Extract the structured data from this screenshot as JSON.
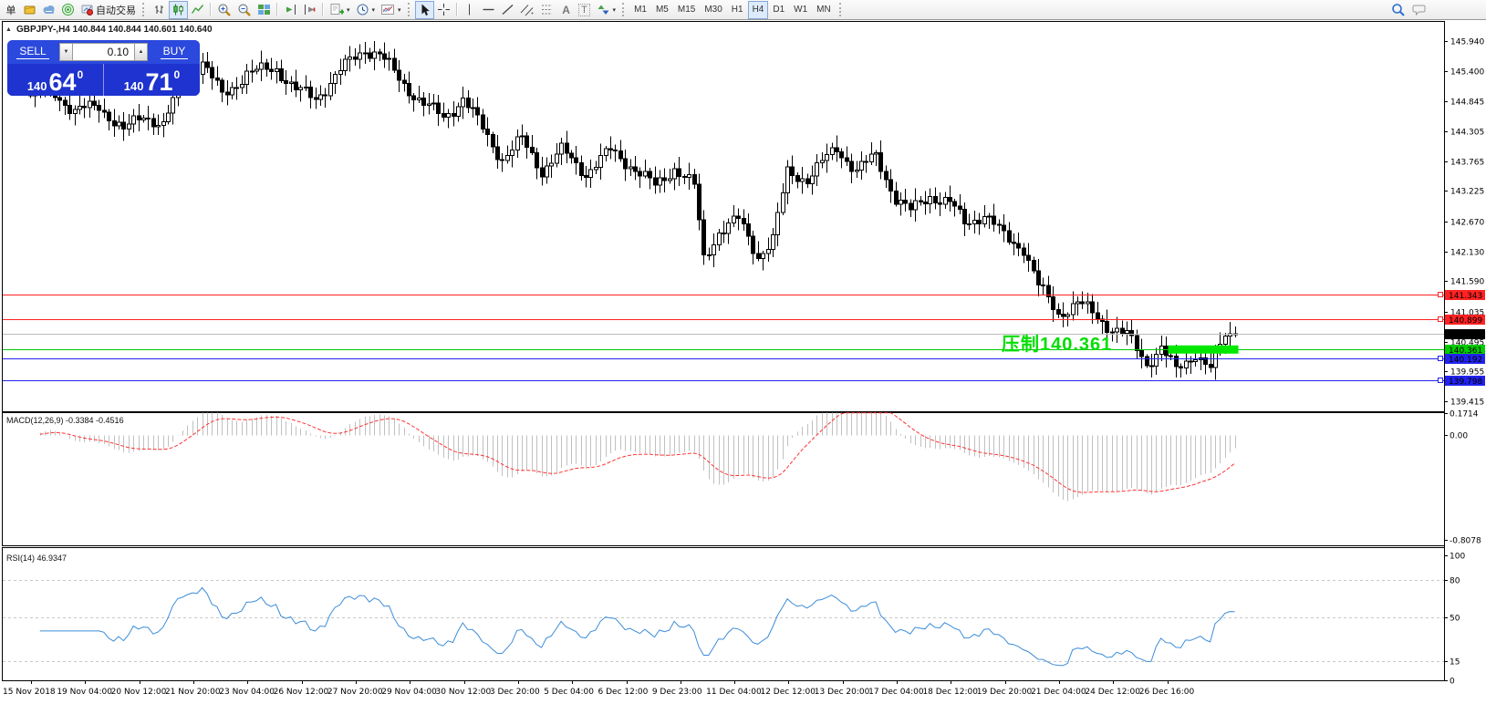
{
  "toolbar": {
    "new_order_label": "单",
    "autotrading_label": "自动交易",
    "text_tool_label": "A",
    "label_tool_label": "T",
    "timeframes": [
      "M1",
      "M5",
      "M15",
      "M30",
      "H1",
      "H4",
      "D1",
      "W1",
      "MN"
    ],
    "active_timeframe": "H4",
    "icons": [
      "notepad-icon",
      "cloud-chart-icon",
      "radar-icon",
      "autotrading-icon",
      "bar-chart-icon",
      "candlestick-icon",
      "line-chart-icon",
      "zoom-in-icon",
      "zoom-out-icon",
      "tile-windows-icon",
      "auto-scroll-icon",
      "chart-shift-icon",
      "add-indicator-icon",
      "periods-clock-icon",
      "template-icon",
      "cursor-icon",
      "crosshair-icon",
      "vertical-line-icon",
      "horizontal-line-icon",
      "trendline-icon",
      "channel-icon",
      "fibonacci-icon",
      "shapes-icon",
      "search-icon",
      "chat-icon"
    ]
  },
  "chart": {
    "title": "GBPJPY-,H4 140.844 140.844 140.601 140.640",
    "symbol": "GBPJPY-",
    "timeframe": "H4"
  },
  "trade_panel": {
    "sell_label": "SELL",
    "buy_label": "BUY",
    "lot_size": "0.10",
    "sell_price_main": "140",
    "sell_price_big": "64",
    "sell_price_sup": "0",
    "buy_price_main": "140",
    "buy_price_big": "71",
    "buy_price_sup": "0"
  },
  "annotation": {
    "text": "压制140.361",
    "color": "#00DE00"
  },
  "macd_label": "MACD(12,26,9) -0.3384 -0.4516",
  "rsi_label": "RSI(14) 46.9347",
  "chart_data": {
    "type": "candlestick",
    "symbol": "GBPJPY-",
    "timeframe": "H4",
    "price_axis_ticks": [
      "145.940",
      "145.400",
      "144.845",
      "144.305",
      "143.765",
      "143.225",
      "142.670",
      "142.130",
      "141.590",
      "141.035",
      "140.495",
      "139.955",
      "139.415"
    ],
    "time_axis_labels": [
      "15 Nov 2018",
      "19 Nov 04:00",
      "20 Nov 12:00",
      "21 Nov 20:00",
      "23 Nov 04:00",
      "26 Nov 12:00",
      "27 Nov 20:00",
      "29 Nov 04:00",
      "30 Nov 12:00",
      "3 Dec 20:00",
      "5 Dec 04:00",
      "6 Dec 12:00",
      "9 Dec 23:00",
      "11 Dec 04:00",
      "12 Dec 12:00",
      "13 Dec 20:00",
      "17 Dec 04:00",
      "18 Dec 12:00",
      "19 Dec 20:00",
      "21 Dec 04:00",
      "24 Dec 12:00",
      "26 Dec 16:00"
    ],
    "h_lines": [
      {
        "price": 141.343,
        "label": "141.343",
        "color": "#FF2222",
        "marker": true
      },
      {
        "price": 140.899,
        "label": "140.899",
        "color": "#FF2222",
        "marker": true
      },
      {
        "price": 140.361,
        "label": "140.361",
        "color": "#00CC00",
        "marker": false
      },
      {
        "price": 140.192,
        "label": "140.192",
        "color": "#2222EE",
        "marker": true
      },
      {
        "price": 139.798,
        "label": "139.798",
        "color": "#2222EE",
        "marker": true
      }
    ],
    "current_price": {
      "value": 140.64,
      "label": "140.640",
      "line_color": "#BBBBBB",
      "tag_color": "#000000"
    },
    "highlight_box": {
      "from_index": 232,
      "to_index": 245,
      "price": 140.361,
      "color": "#00E800"
    },
    "candles": {
      "count": 246,
      "last_close": 140.64,
      "close_pivots": [
        [
          0,
          144.95
        ],
        [
          4,
          145.1
        ],
        [
          9,
          144.65
        ],
        [
          14,
          144.78
        ],
        [
          19,
          144.3
        ],
        [
          23,
          144.62
        ],
        [
          27,
          144.4
        ],
        [
          31,
          145.25
        ],
        [
          35,
          145.55
        ],
        [
          39,
          144.95
        ],
        [
          44,
          145.35
        ],
        [
          50,
          145.45
        ],
        [
          54,
          145.05
        ],
        [
          58,
          144.9
        ],
        [
          63,
          145.4
        ],
        [
          68,
          145.8
        ],
        [
          71,
          145.7
        ],
        [
          75,
          145.25
        ],
        [
          80,
          144.8
        ],
        [
          84,
          144.55
        ],
        [
          88,
          144.9
        ],
        [
          92,
          144.35
        ],
        [
          96,
          143.8
        ],
        [
          100,
          144.15
        ],
        [
          104,
          143.6
        ],
        [
          108,
          143.95
        ],
        [
          113,
          143.55
        ],
        [
          118,
          143.95
        ],
        [
          122,
          143.7
        ],
        [
          127,
          143.3
        ],
        [
          131,
          143.65
        ],
        [
          135,
          143.3
        ],
        [
          137,
          142.0
        ],
        [
          140,
          142.5
        ],
        [
          144,
          142.7
        ],
        [
          148,
          142.05
        ],
        [
          151,
          142.35
        ],
        [
          154,
          143.55
        ],
        [
          158,
          143.45
        ],
        [
          164,
          144.0
        ],
        [
          168,
          143.6
        ],
        [
          172,
          143.85
        ],
        [
          176,
          143.1
        ],
        [
          179,
          142.85
        ],
        [
          183,
          143.15
        ],
        [
          187,
          143.0
        ],
        [
          190,
          142.65
        ],
        [
          194,
          142.8
        ],
        [
          198,
          142.4
        ],
        [
          202,
          142.2
        ],
        [
          205,
          141.5
        ],
        [
          209,
          141.0
        ],
        [
          213,
          141.2
        ],
        [
          219,
          140.8
        ],
        [
          223,
          140.6
        ],
        [
          227,
          140.1
        ],
        [
          230,
          140.4
        ],
        [
          233,
          139.95
        ],
        [
          237,
          140.3
        ],
        [
          240,
          140.0
        ],
        [
          243,
          140.6
        ],
        [
          245,
          140.64
        ]
      ]
    },
    "macd": {
      "fast": 12,
      "slow": 26,
      "signal": 9,
      "value": -0.3384,
      "signal_value": -0.4516,
      "axis_ticks": [
        "0.1714",
        "0.00",
        "-0.8078"
      ],
      "histogram_color": "#C0C0C0",
      "signal_color": "#FF3333"
    },
    "rsi": {
      "period": 14,
      "value": 46.9347,
      "axis_ticks": [
        "100",
        "80",
        "50",
        "15",
        "0"
      ],
      "levels": [
        80,
        50,
        15
      ],
      "line_color": "#3C8CD8"
    }
  }
}
